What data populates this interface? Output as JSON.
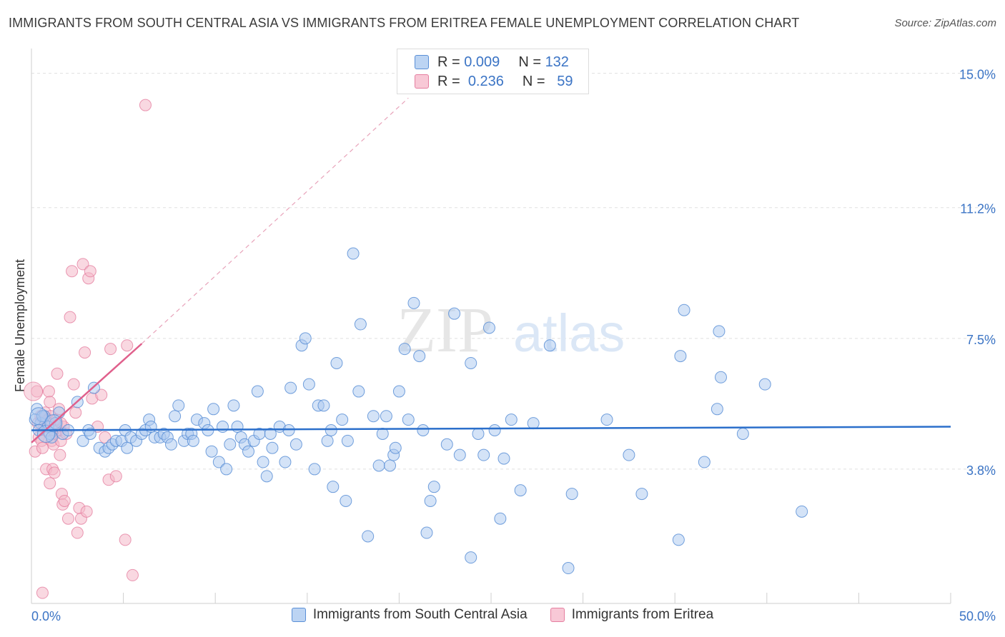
{
  "title": "IMMIGRANTS FROM SOUTH CENTRAL ASIA VS IMMIGRANTS FROM ERITREA FEMALE UNEMPLOYMENT CORRELATION CHART",
  "source": "Source: ZipAtlas.com",
  "watermark": {
    "zip": "ZIP",
    "atlas": "atlas"
  },
  "stats": {
    "r_label": "R =",
    "n_label": "N =",
    "rows": [
      {
        "r": "0.009",
        "n": "132"
      },
      {
        "r": "0.236",
        "n": "59"
      }
    ]
  },
  "colors": {
    "blue_fill": "#a9c8f0",
    "blue_stroke": "#5a8fd6",
    "blue_line": "#2b6fcb",
    "pink_fill": "#f4b8c9",
    "pink_stroke": "#e57fa0",
    "pink_line": "#e0608c",
    "axis_label": "#3b74c5",
    "grid": "#e0e0e0"
  },
  "chart_data": {
    "type": "scatter",
    "title": "IMMIGRANTS FROM SOUTH CENTRAL ASIA VS IMMIGRANTS FROM ERITREA FEMALE UNEMPLOYMENT CORRELATION CHART",
    "xlabel": "",
    "ylabel": "Female Unemployment",
    "xlim": [
      0,
      50
    ],
    "ylim": [
      0,
      15.7
    ],
    "x_tick_labels": [
      "0.0%",
      "50.0%"
    ],
    "y_ticks": [
      3.8,
      7.5,
      11.2,
      15.0
    ],
    "y_tick_labels": [
      "3.8%",
      "7.5%",
      "11.2%",
      "15.0%"
    ],
    "grid": true,
    "legend_position": "bottom-center",
    "series": [
      {
        "name": "Immigrants from South Central Asia",
        "trend": {
          "x": [
            0,
            50
          ],
          "y": [
            4.9,
            5.0
          ]
        },
        "points": [
          [
            0.3,
            5.5
          ],
          [
            0.5,
            5.1
          ],
          [
            0.7,
            5.3
          ],
          [
            0.9,
            5.0
          ],
          [
            1.0,
            4.8
          ],
          [
            1.1,
            4.7
          ],
          [
            1.3,
            5.1
          ],
          [
            1.5,
            5.4
          ],
          [
            1.7,
            4.8
          ],
          [
            2.0,
            4.9
          ],
          [
            2.5,
            5.7
          ],
          [
            2.8,
            4.6
          ],
          [
            3.1,
            4.9
          ],
          [
            3.2,
            4.8
          ],
          [
            3.4,
            6.1
          ],
          [
            3.7,
            4.4
          ],
          [
            4.0,
            4.3
          ],
          [
            4.2,
            4.4
          ],
          [
            4.4,
            4.5
          ],
          [
            4.6,
            4.6
          ],
          [
            4.9,
            4.6
          ],
          [
            5.1,
            4.9
          ],
          [
            5.2,
            4.4
          ],
          [
            5.4,
            4.7
          ],
          [
            5.7,
            4.6
          ],
          [
            6.0,
            4.8
          ],
          [
            6.2,
            4.9
          ],
          [
            6.4,
            5.2
          ],
          [
            6.5,
            5.0
          ],
          [
            6.7,
            4.7
          ],
          [
            7.0,
            4.7
          ],
          [
            7.2,
            4.8
          ],
          [
            7.4,
            4.7
          ],
          [
            7.6,
            4.5
          ],
          [
            7.8,
            5.3
          ],
          [
            8.0,
            5.6
          ],
          [
            8.3,
            4.6
          ],
          [
            8.5,
            4.8
          ],
          [
            8.7,
            4.8
          ],
          [
            8.8,
            4.6
          ],
          [
            9.0,
            5.2
          ],
          [
            9.4,
            5.1
          ],
          [
            9.6,
            4.9
          ],
          [
            9.8,
            4.3
          ],
          [
            9.9,
            5.5
          ],
          [
            10.2,
            4.0
          ],
          [
            10.4,
            5.0
          ],
          [
            10.6,
            3.8
          ],
          [
            10.8,
            4.5
          ],
          [
            11.0,
            5.6
          ],
          [
            11.2,
            5.0
          ],
          [
            11.4,
            4.7
          ],
          [
            11.6,
            4.5
          ],
          [
            11.8,
            4.3
          ],
          [
            12.1,
            4.6
          ],
          [
            12.3,
            6.0
          ],
          [
            12.4,
            4.8
          ],
          [
            12.6,
            4.0
          ],
          [
            12.8,
            3.6
          ],
          [
            13.0,
            4.8
          ],
          [
            13.1,
            4.4
          ],
          [
            13.5,
            5.0
          ],
          [
            13.8,
            4.0
          ],
          [
            14.0,
            4.9
          ],
          [
            14.1,
            6.1
          ],
          [
            14.4,
            4.5
          ],
          [
            14.7,
            7.3
          ],
          [
            14.9,
            7.5
          ],
          [
            15.1,
            6.2
          ],
          [
            15.4,
            3.8
          ],
          [
            15.6,
            5.6
          ],
          [
            15.9,
            5.6
          ],
          [
            16.1,
            4.6
          ],
          [
            16.3,
            4.9
          ],
          [
            16.4,
            3.3
          ],
          [
            16.6,
            6.8
          ],
          [
            16.9,
            5.2
          ],
          [
            17.1,
            2.9
          ],
          [
            17.2,
            4.6
          ],
          [
            17.5,
            9.9
          ],
          [
            17.8,
            6.0
          ],
          [
            17.9,
            7.9
          ],
          [
            18.3,
            1.9
          ],
          [
            18.6,
            5.3
          ],
          [
            18.9,
            3.9
          ],
          [
            19.1,
            4.8
          ],
          [
            19.3,
            5.3
          ],
          [
            19.5,
            3.9
          ],
          [
            19.7,
            4.2
          ],
          [
            19.8,
            4.4
          ],
          [
            20.0,
            6.0
          ],
          [
            20.3,
            7.2
          ],
          [
            20.5,
            5.2
          ],
          [
            20.8,
            8.5
          ],
          [
            21.1,
            7.0
          ],
          [
            21.3,
            4.9
          ],
          [
            21.5,
            2.0
          ],
          [
            21.7,
            2.9
          ],
          [
            21.9,
            3.3
          ],
          [
            22.6,
            4.5
          ],
          [
            23.0,
            8.2
          ],
          [
            23.3,
            4.2
          ],
          [
            23.9,
            6.8
          ],
          [
            23.9,
            1.3
          ],
          [
            24.3,
            4.8
          ],
          [
            24.6,
            4.2
          ],
          [
            24.9,
            7.8
          ],
          [
            25.2,
            4.9
          ],
          [
            25.5,
            2.4
          ],
          [
            25.7,
            4.1
          ],
          [
            26.1,
            5.2
          ],
          [
            26.6,
            3.2
          ],
          [
            27.3,
            5.1
          ],
          [
            28.2,
            7.3
          ],
          [
            29.2,
            1.0
          ],
          [
            29.4,
            3.1
          ],
          [
            31.3,
            5.2
          ],
          [
            32.5,
            4.2
          ],
          [
            33.2,
            3.1
          ],
          [
            35.2,
            1.8
          ],
          [
            35.3,
            7.0
          ],
          [
            35.5,
            8.3
          ],
          [
            36.6,
            4.0
          ],
          [
            37.3,
            5.5
          ],
          [
            37.4,
            7.7
          ],
          [
            37.5,
            6.4
          ],
          [
            38.7,
            4.8
          ],
          [
            39.9,
            6.2
          ],
          [
            41.9,
            2.6
          ],
          [
            0.2,
            5.2
          ],
          [
            0.4,
            4.9
          ],
          [
            0.6,
            5.3
          ]
        ],
        "large_points": [
          [
            0.4,
            5.3
          ],
          [
            0.8,
            4.8
          ],
          [
            1.2,
            5.1
          ]
        ]
      },
      {
        "name": "Immigrants from Eritrea",
        "trend": {
          "x": [
            0,
            6.0
          ],
          "y": [
            4.55,
            7.35
          ]
        },
        "trend_extension": {
          "x": [
            6.0,
            20.5
          ],
          "y": [
            7.35,
            14.3
          ]
        },
        "points": [
          [
            0.2,
            4.3
          ],
          [
            0.3,
            6.0
          ],
          [
            0.35,
            5.1
          ],
          [
            0.4,
            4.7
          ],
          [
            0.5,
            5.3
          ],
          [
            0.55,
            4.6
          ],
          [
            0.6,
            4.4
          ],
          [
            0.7,
            5.0
          ],
          [
            0.75,
            5.4
          ],
          [
            0.8,
            3.8
          ],
          [
            0.85,
            4.9
          ],
          [
            0.9,
            5.2
          ],
          [
            0.95,
            6.0
          ],
          [
            1.0,
            5.7
          ],
          [
            1.05,
            5.3
          ],
          [
            1.1,
            4.6
          ],
          [
            1.15,
            3.8
          ],
          [
            1.2,
            4.5
          ],
          [
            1.25,
            3.7
          ],
          [
            1.3,
            4.8
          ],
          [
            1.35,
            5.2
          ],
          [
            1.4,
            6.5
          ],
          [
            1.45,
            4.9
          ],
          [
            1.5,
            5.5
          ],
          [
            1.55,
            4.2
          ],
          [
            1.6,
            4.6
          ],
          [
            1.65,
            3.1
          ],
          [
            1.7,
            2.8
          ],
          [
            1.75,
            5.0
          ],
          [
            1.8,
            2.9
          ],
          [
            1.9,
            4.8
          ],
          [
            2.0,
            2.4
          ],
          [
            2.1,
            8.1
          ],
          [
            2.2,
            9.4
          ],
          [
            2.3,
            6.2
          ],
          [
            2.4,
            5.4
          ],
          [
            2.5,
            2.0
          ],
          [
            2.6,
            2.7
          ],
          [
            2.7,
            2.4
          ],
          [
            2.8,
            9.6
          ],
          [
            2.9,
            7.1
          ],
          [
            3.0,
            2.6
          ],
          [
            3.1,
            9.2
          ],
          [
            3.2,
            9.4
          ],
          [
            3.3,
            5.8
          ],
          [
            3.6,
            5.0
          ],
          [
            3.8,
            5.9
          ],
          [
            4.0,
            4.7
          ],
          [
            4.2,
            3.5
          ],
          [
            4.3,
            7.2
          ],
          [
            4.6,
            3.6
          ],
          [
            5.1,
            1.8
          ],
          [
            5.2,
            7.3
          ],
          [
            5.5,
            0.8
          ],
          [
            6.2,
            14.1
          ],
          [
            0.6,
            0.3
          ],
          [
            1.0,
            3.4
          ],
          [
            1.2,
            4.9
          ],
          [
            1.6,
            5.1
          ]
        ],
        "large_points": [
          [
            0.1,
            6.0
          ]
        ]
      }
    ]
  }
}
